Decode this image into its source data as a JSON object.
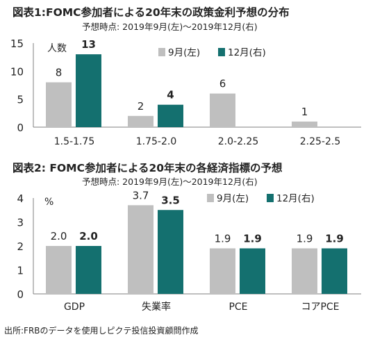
{
  "colors": {
    "sep": "#bfbfbf",
    "dec": "#14706f"
  },
  "charts": [
    {
      "title": "図表1:FOMC参加者による20年末の政策金利予想の分布",
      "subtitle": "予想時点: 2019年9月(左)〜2019年12月(右)"
    },
    {
      "title": "図表2: FOMC参加者による20年末の各経済指標の予想",
      "subtitle": "予想時点: 2019年9月(左)〜2019年12月(右)"
    }
  ],
  "footer": "出所:FRBのデータを使用しピクテ投信投資顧問作成",
  "chart_data": [
    {
      "type": "bar",
      "title": "図表1:FOMC参加者による20年末の政策金利予想の分布",
      "subtitle": "予想時点: 2019年9月(左)〜2019年12月(右)",
      "unit_label": "人数",
      "categories": [
        "1.5-1.75",
        "1.75-2.0",
        "2.0-2.25",
        "2.25-2.5"
      ],
      "series": [
        {
          "name": "9月(左)",
          "values": [
            8,
            2,
            6,
            1
          ],
          "labels": [
            "8",
            "2",
            "6",
            "1"
          ],
          "bold": false
        },
        {
          "name": "12月(右)",
          "values": [
            13,
            4,
            0,
            0
          ],
          "labels": [
            "13",
            "4",
            "",
            ""
          ],
          "bold": true
        }
      ],
      "ylim": [
        0,
        15
      ],
      "yticks": [
        "0",
        "5",
        "10",
        "15"
      ],
      "grid": false,
      "legend": "top-right"
    },
    {
      "type": "bar",
      "title": "図表2: FOMC参加者による20年末の各経済指標の予想",
      "subtitle": "予想時点: 2019年9月(左)〜2019年12月(右)",
      "unit_label": "%",
      "categories": [
        "GDP",
        "失業率",
        "PCE",
        "コアPCE"
      ],
      "series": [
        {
          "name": "9月(左)",
          "values": [
            2.0,
            3.7,
            1.9,
            1.9
          ],
          "labels": [
            "2.0",
            "3.7",
            "1.9",
            "1.9"
          ],
          "bold": false
        },
        {
          "name": "12月(右)",
          "values": [
            2.0,
            3.5,
            1.9,
            1.9
          ],
          "labels": [
            "2.0",
            "3.5",
            "1.9",
            "1.9"
          ],
          "bold": true
        }
      ],
      "ylim": [
        0,
        4
      ],
      "yticks": [
        "0",
        "1",
        "2",
        "3",
        "4"
      ],
      "grid": false,
      "legend": "top-right"
    }
  ]
}
